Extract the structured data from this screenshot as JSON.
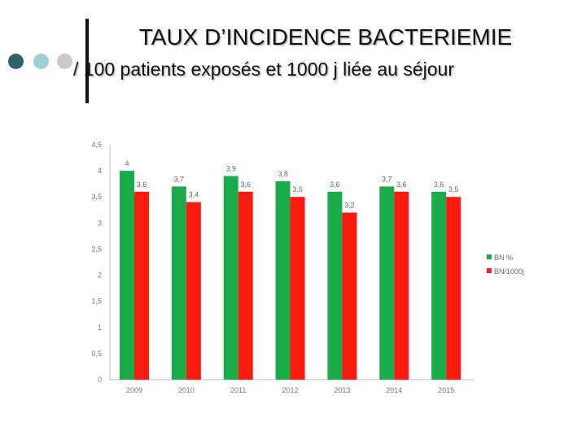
{
  "slide": {
    "title_line1": "TAUX D’INCIDENCE BACTERIEMIE",
    "title_line2": "/ 100 patients exposés et 1000 j liée au séjour"
  },
  "chart_data": {
    "type": "bar",
    "categories": [
      "2009",
      "2010",
      "2011",
      "2012",
      "2013",
      "2014",
      "2015"
    ],
    "series": [
      {
        "name": "BN %",
        "color": "#1aab4b",
        "values": [
          4,
          3.7,
          3.9,
          3.8,
          3.6,
          3.7,
          3.6
        ]
      },
      {
        "name": "BN/1000j",
        "color": "#ff1a0f",
        "values": [
          3.6,
          3.4,
          3.6,
          3.5,
          3.2,
          3.6,
          3.5
        ]
      }
    ],
    "series_labels": [
      [
        "4",
        "3,7",
        "3,9",
        "3,8",
        "3,6",
        "3,7",
        "3,6"
      ],
      [
        "3,6",
        "3,4",
        "3,6",
        "3,5",
        "3,2",
        "3,6",
        "3,5"
      ]
    ],
    "yticks": [
      "0",
      "0,5",
      "1",
      "1,5",
      "2",
      "2,5",
      "3",
      "3,5",
      "4",
      "4,5"
    ],
    "ylim": [
      0,
      4.5
    ],
    "grid": false,
    "legend": "right",
    "title": "",
    "xlabel": "",
    "ylabel": ""
  }
}
